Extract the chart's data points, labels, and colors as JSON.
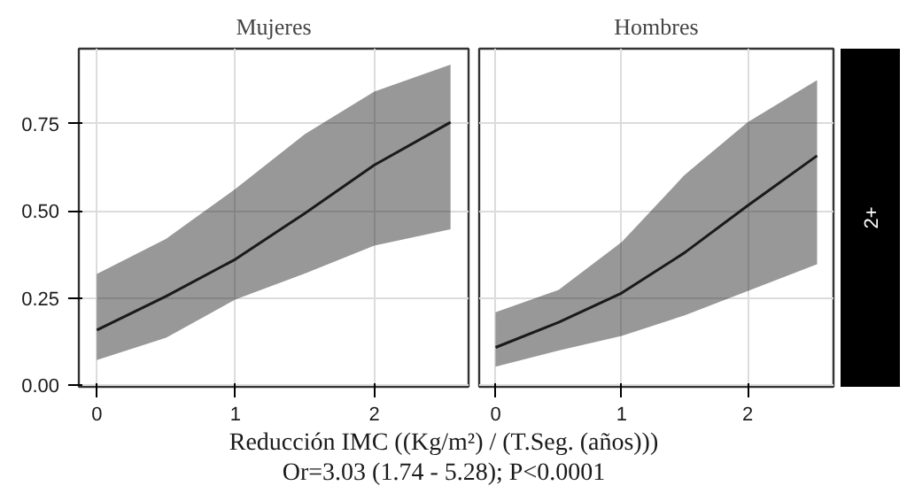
{
  "chart_data": [
    {
      "type": "line",
      "title": "Mujeres",
      "xlabel": "Reducción IMC ((Kg/m²) / (T.Seg. (años)))",
      "annotations": [
        "Or=3.03 (1.74 - 5.28); P<0.0001"
      ],
      "x": [
        0,
        0.5,
        1,
        1.5,
        2,
        2.55
      ],
      "xlim": [
        -0.13,
        2.68
      ],
      "ylim": [
        -0.005,
        0.965
      ],
      "xticks": [
        0,
        1,
        2
      ],
      "yticks": [
        {
          "value": 0,
          "label": "0.00"
        },
        {
          "value": 0.25,
          "label": "0.25"
        },
        {
          "value": 0.5,
          "label": "0.50"
        },
        {
          "value": 0.75,
          "label": "0.75"
        }
      ],
      "grid": true,
      "series": [
        {
          "color": "#1a1a1a",
          "values": [
            0.158,
            0.255,
            0.361,
            0.493,
            0.631,
            0.754
          ],
          "lower": [
            0.072,
            0.136,
            0.246,
            0.32,
            0.4,
            0.447
          ],
          "upper": [
            0.319,
            0.42,
            0.563,
            0.72,
            0.842,
            0.919
          ]
        }
      ]
    },
    {
      "type": "line",
      "title": "Hombres",
      "annotations": [
        "2+"
      ],
      "x": [
        0,
        0.5,
        1,
        1.5,
        2,
        2.55
      ],
      "xlim": [
        -0.13,
        2.68
      ],
      "ylim": [
        -0.005,
        0.965
      ],
      "xticks": [
        0,
        1,
        2
      ],
      "yticks": [
        0,
        0.25,
        0.5,
        0.75
      ],
      "grid": true,
      "tick_labels": "x",
      "series": [
        {
          "color": "#1a1a1a",
          "values": [
            0.108,
            0.18,
            0.264,
            0.38,
            0.515,
            0.658
          ],
          "lower": [
            0.053,
            0.099,
            0.141,
            0.2,
            0.27,
            0.347
          ],
          "upper": [
            0.209,
            0.273,
            0.41,
            0.603,
            0.754,
            0.875
          ]
        }
      ]
    }
  ]
}
